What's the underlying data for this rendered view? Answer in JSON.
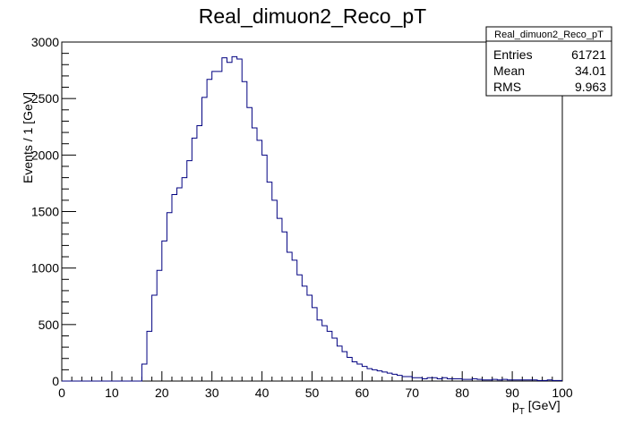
{
  "chart_data": {
    "type": "histogram",
    "title": "Real_dimuon2_Reco_pT",
    "xlabel_main": "p",
    "xlabel_sub": "T",
    "xlabel_unit": " [GeV]",
    "ylabel": "Events / 1 [GeV]",
    "xlim": [
      0,
      100
    ],
    "ylim": [
      0,
      3000
    ],
    "x_ticks": [
      0,
      10,
      20,
      30,
      40,
      50,
      60,
      70,
      80,
      90,
      100
    ],
    "y_ticks": [
      0,
      500,
      1000,
      1500,
      2000,
      2500,
      3000
    ],
    "bin_width": 1,
    "line_color": "#000080",
    "values": [
      0,
      0,
      0,
      0,
      0,
      0,
      0,
      0,
      0,
      0,
      0,
      0,
      0,
      0,
      0,
      0,
      150,
      440,
      760,
      980,
      1240,
      1490,
      1650,
      1710,
      1800,
      1950,
      2150,
      2260,
      2510,
      2670,
      2740,
      2740,
      2860,
      2820,
      2870,
      2850,
      2650,
      2420,
      2240,
      2130,
      2000,
      1760,
      1600,
      1440,
      1320,
      1140,
      1070,
      940,
      840,
      760,
      650,
      540,
      490,
      440,
      380,
      310,
      260,
      210,
      170,
      150,
      130,
      110,
      100,
      90,
      80,
      70,
      60,
      50,
      40,
      40,
      30,
      30,
      20,
      30,
      30,
      20,
      30,
      20,
      20,
      20,
      15,
      15,
      20,
      15,
      10,
      10,
      15,
      10,
      15,
      10,
      10,
      10,
      10,
      10,
      10,
      5,
      5,
      10,
      5,
      5
    ],
    "stats": {
      "title": "Real_dimuon2_Reco_pT",
      "rows": [
        {
          "label": "Entries",
          "value": "61721"
        },
        {
          "label": "Mean",
          "value": "34.01"
        },
        {
          "label": "RMS",
          "value": "9.963"
        }
      ]
    }
  }
}
